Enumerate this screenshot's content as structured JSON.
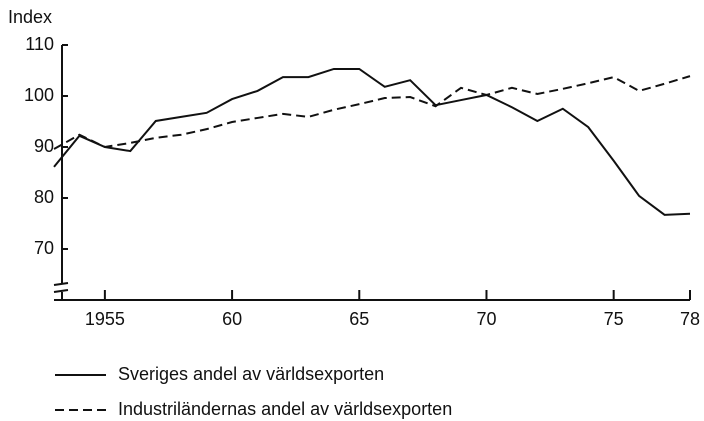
{
  "chart_data": {
    "type": "line",
    "y_label": "Index",
    "x": [
      1953,
      1954,
      1955,
      1956,
      1957,
      1958,
      1959,
      1960,
      1961,
      1962,
      1963,
      1964,
      1965,
      1966,
      1967,
      1968,
      1969,
      1970,
      1971,
      1972,
      1973,
      1974,
      1975,
      1976,
      1977,
      1978
    ],
    "series": [
      {
        "name": "Sveriges andel av världsexporten",
        "color": "#111111",
        "dash": "solid",
        "values": [
          86.1,
          92.2,
          90,
          89.2,
          95.1,
          95.9,
          96.7,
          99.4,
          101,
          103.7,
          103.7,
          105.3,
          105.3,
          101.8,
          103.1,
          98.2,
          99.2,
          100.2,
          97.8,
          95.1,
          97.5,
          93.9,
          87.3,
          80.4,
          76.7,
          76.9
        ]
      },
      {
        "name": "Industriländernas andel av världsexporten",
        "color": "#111111",
        "dash": "dashed",
        "values": [
          89.6,
          92.4,
          90,
          90.8,
          91.8,
          92.4,
          93.5,
          94.9,
          95.7,
          96.5,
          95.9,
          97.3,
          98.4,
          99.6,
          99.8,
          98,
          101.6,
          100.2,
          101.6,
          100.4,
          101.4,
          102.5,
          103.7,
          101,
          102.4,
          103.9
        ]
      }
    ],
    "xlim": [
      1953,
      1978
    ],
    "xticks": [
      {
        "value": 1955,
        "label": "1955"
      },
      {
        "value": 1960,
        "label": "60"
      },
      {
        "value": 1965,
        "label": "65"
      },
      {
        "value": 1970,
        "label": "70"
      },
      {
        "value": 1975,
        "label": "75"
      },
      {
        "value": 1978,
        "label": "78"
      }
    ],
    "ylim": [
      60,
      110
    ],
    "yticks": [
      70,
      80,
      90,
      100,
      110
    ],
    "grid": false,
    "legend": "bottom-left"
  }
}
